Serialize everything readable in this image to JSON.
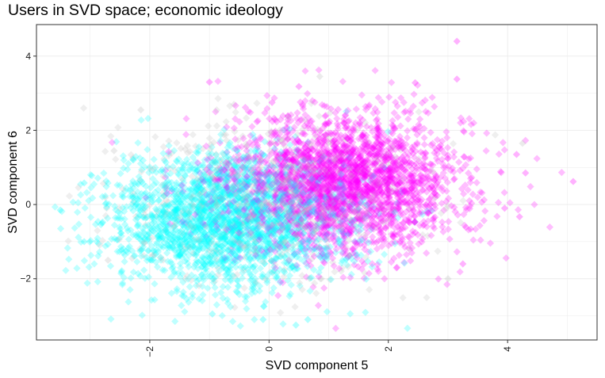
{
  "chart_data": {
    "type": "scatter",
    "title": "Users in SVD space; economic ideology",
    "xlabel": "SVD component 5",
    "ylabel": "SVD component 6",
    "xlim": [
      -3.9,
      5.5
    ],
    "ylim": [
      -3.65,
      4.85
    ],
    "x_ticks": [
      -2,
      0,
      2,
      4
    ],
    "y_ticks": [
      -2,
      0,
      2,
      4
    ],
    "grid": true,
    "legend": "none",
    "marker": "diamond",
    "series": [
      {
        "color": "#ff00ff",
        "opacity": 0.25,
        "center": [
          1.2,
          0.55
        ],
        "spread": [
          1.0,
          0.95
        ],
        "count": 2600,
        "points": [
          [
            3.15,
            4.4
          ],
          [
            3.15,
            3.38
          ],
          [
            2.45,
            3.28
          ],
          [
            5.1,
            0.62
          ],
          [
            4.3,
            0.85
          ],
          [
            4.15,
            1.35
          ],
          [
            4.2,
            -0.33
          ],
          [
            3.95,
            -0.1
          ],
          [
            3.25,
            -1.6
          ],
          [
            0.05,
            2.75
          ],
          [
            -1.0,
            3.3
          ],
          [
            0.5,
            3.18
          ]
        ]
      },
      {
        "color": "#00ffff",
        "opacity": 0.25,
        "center": [
          -0.7,
          -0.4
        ],
        "spread": [
          1.0,
          0.9
        ],
        "count": 2300,
        "points": [
          [
            -3.5,
            -0.15
          ],
          [
            -3.1,
            0.58
          ],
          [
            -3.1,
            -1.0
          ],
          [
            -2.8,
            -0.5
          ],
          [
            0.45,
            -3.25
          ],
          [
            0.65,
            -3.1
          ],
          [
            -0.95,
            -2.95
          ],
          [
            -0.1,
            -3.1
          ],
          [
            -2.55,
            -0.95
          ]
        ]
      },
      {
        "color": "#bebebe",
        "opacity": 0.25,
        "center": [
          0.0,
          0.05
        ],
        "spread": [
          1.2,
          1.05
        ],
        "count": 700,
        "points": [
          [
            0.85,
            3.45
          ],
          [
            -2.15,
            2.55
          ],
          [
            -2.6,
            1.45
          ],
          [
            4.25,
            1.65
          ],
          [
            3.0,
            -2.0
          ],
          [
            -2.7,
            -1.5
          ]
        ]
      }
    ]
  }
}
